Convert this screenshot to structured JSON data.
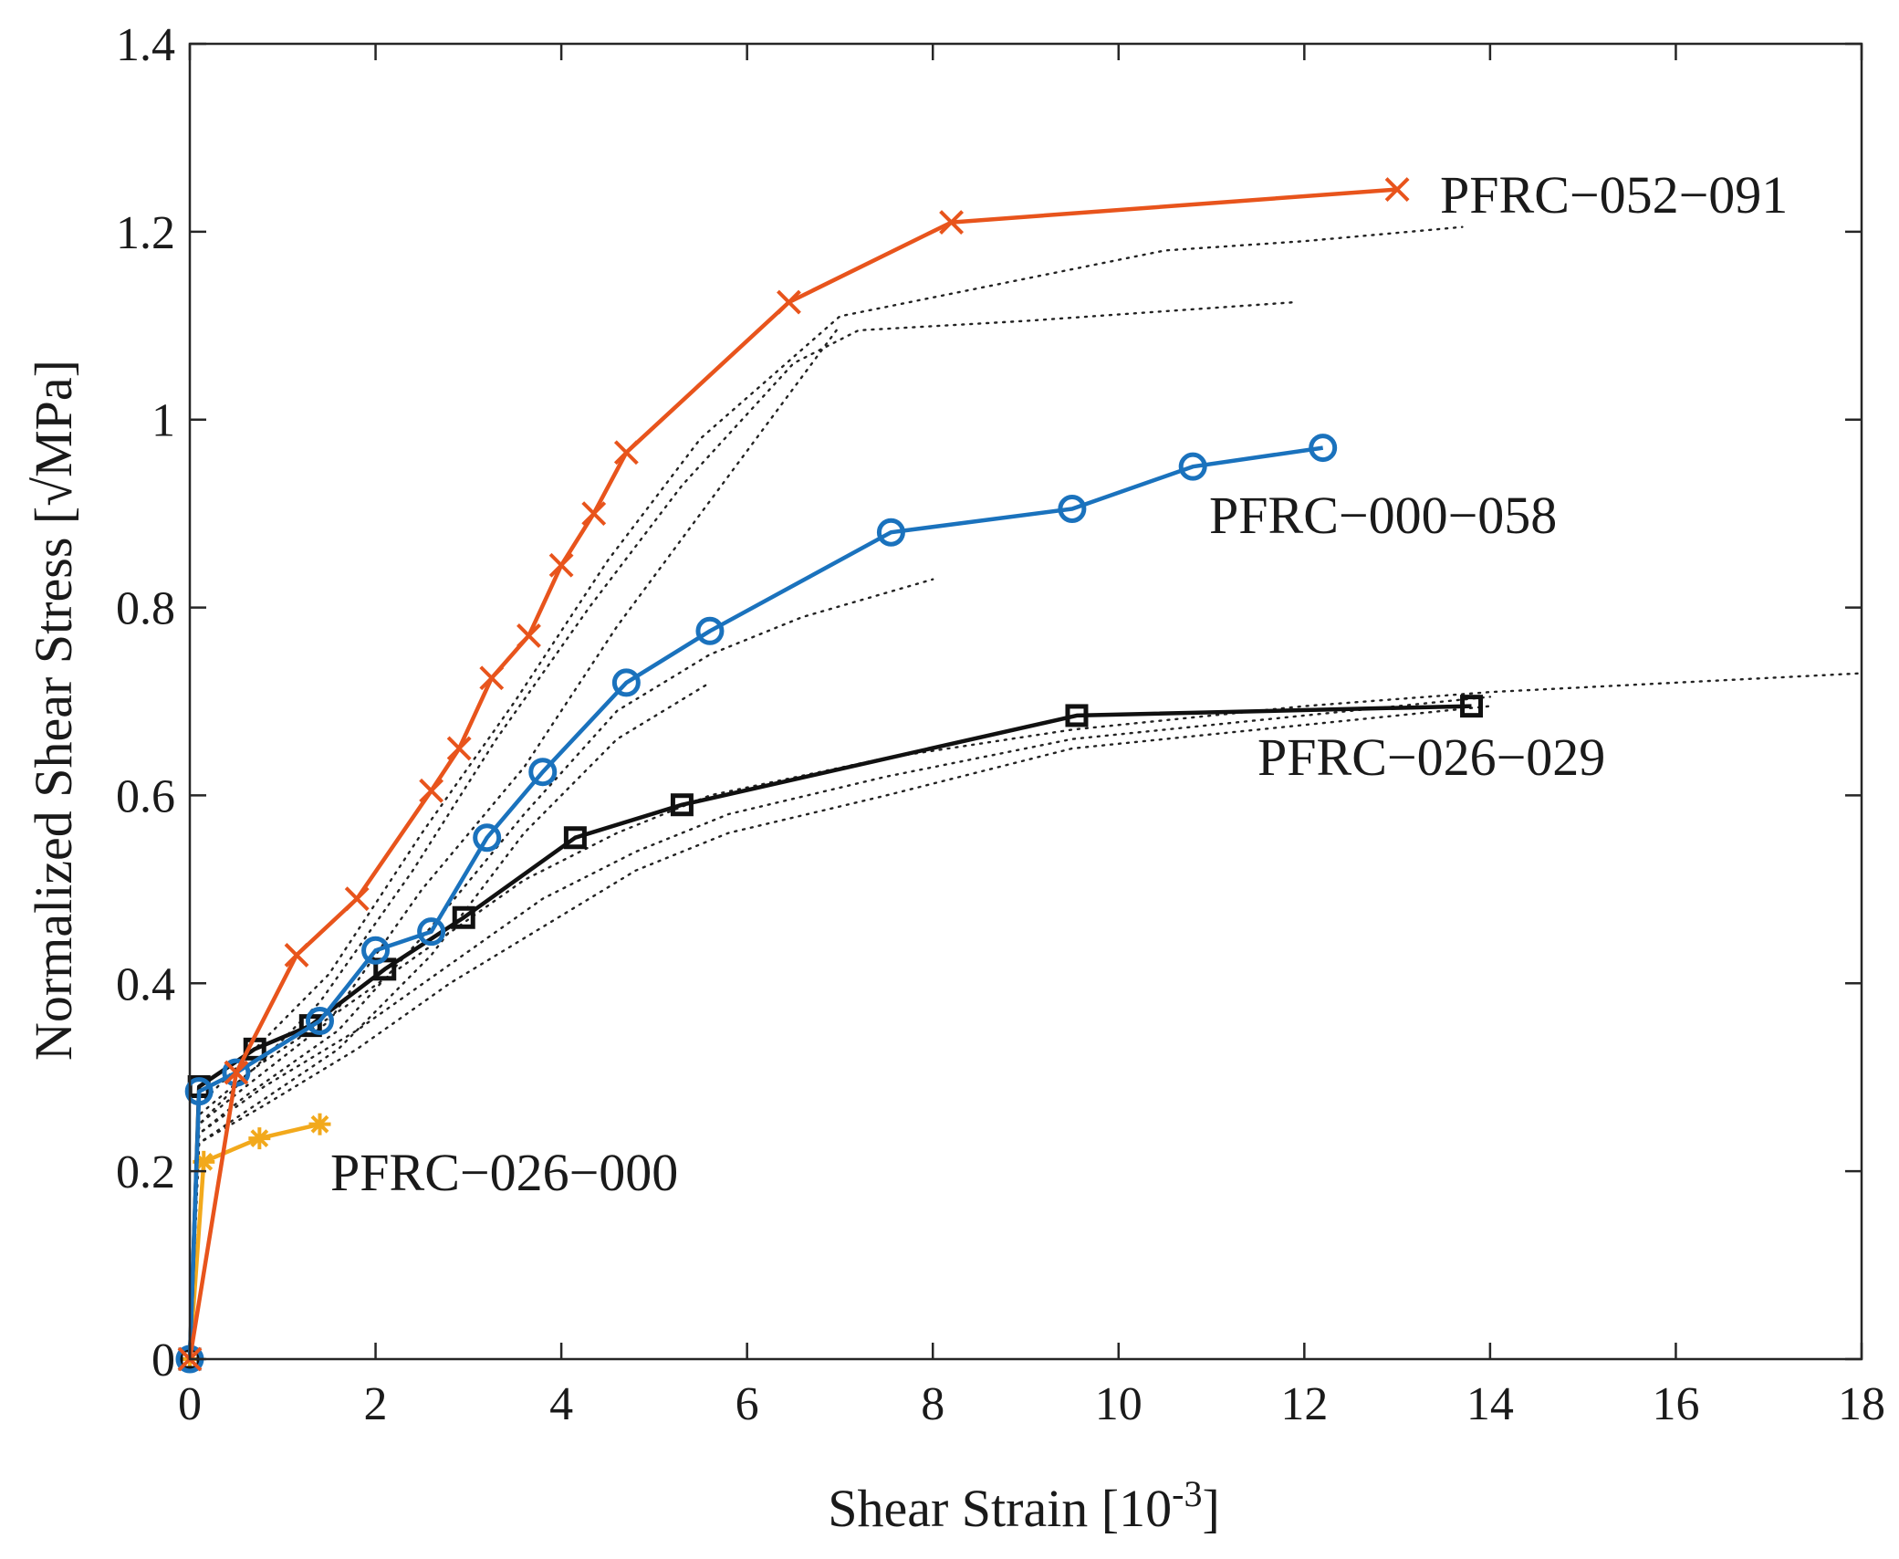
{
  "chart_data": {
    "type": "line",
    "xlabel": "Shear Strain [10",
    "xlabel_exponent": "-3",
    "xlabel_suffix": "]",
    "ylabel": "Normalized Shear Stress [√MPa]",
    "xlim": [
      0,
      18
    ],
    "ylim": [
      0,
      1.4
    ],
    "x_ticks": [
      0,
      2,
      4,
      6,
      8,
      10,
      12,
      14,
      16,
      18
    ],
    "x_tick_labels": [
      "0",
      "2",
      "4",
      "6",
      "8",
      "10",
      "12",
      "14",
      "16",
      "18"
    ],
    "y_ticks": [
      0,
      0.2,
      0.4,
      0.6,
      0.8,
      1.0,
      1.2,
      1.4
    ],
    "y_tick_labels": [
      "0",
      "0.2",
      "0.4",
      "0.6",
      "0.8",
      "1",
      "1.2",
      "1.4"
    ],
    "grid": false,
    "series": [
      {
        "name": "PFRC−052−091",
        "color": "#e8541c",
        "marker": "x",
        "x": [
          0,
          0.5,
          1.15,
          1.8,
          2.6,
          2.9,
          3.25,
          3.65,
          4.0,
          4.35,
          4.7,
          6.45,
          8.2,
          13.0
        ],
        "y": [
          0,
          0.305,
          0.43,
          0.49,
          0.605,
          0.65,
          0.725,
          0.77,
          0.845,
          0.9,
          0.965,
          1.125,
          1.21,
          1.245
        ]
      },
      {
        "name": "PFRC−000−058",
        "color": "#1a72bd",
        "marker": "circle",
        "x": [
          0,
          0.1,
          0.5,
          1.4,
          2.0,
          2.6,
          3.2,
          3.8,
          4.7,
          5.6,
          7.55,
          9.5,
          10.8,
          12.2
        ],
        "y": [
          0,
          0.285,
          0.305,
          0.36,
          0.435,
          0.455,
          0.555,
          0.625,
          0.72,
          0.775,
          0.88,
          0.905,
          0.95,
          0.97
        ]
      },
      {
        "name": "PFRC−026−029",
        "color": "#111111",
        "marker": "square",
        "x": [
          0,
          0.1,
          0.7,
          1.3,
          2.1,
          2.95,
          4.15,
          5.3,
          9.55,
          13.8
        ],
        "y": [
          0,
          0.29,
          0.33,
          0.355,
          0.415,
          0.47,
          0.555,
          0.59,
          0.685,
          0.695
        ]
      },
      {
        "name": "PFRC−026−000",
        "color": "#f2a91c",
        "marker": "asterisk",
        "x": [
          0,
          0.15,
          0.75,
          1.4
        ],
        "y": [
          0,
          0.21,
          0.235,
          0.25
        ]
      }
    ],
    "reference_curves": [
      {
        "x": [
          0,
          0.1,
          0.6,
          1.5,
          2.5,
          3.5,
          4.5,
          5.5,
          7.0,
          8.5,
          10.5,
          12.0,
          13.7
        ],
        "y": [
          0,
          0.27,
          0.32,
          0.41,
          0.56,
          0.7,
          0.85,
          0.98,
          1.11,
          1.14,
          1.18,
          1.19,
          1.205
        ]
      },
      {
        "x": [
          0,
          0.1,
          0.6,
          1.4,
          2.4,
          3.3,
          4.3,
          5.3,
          6.5,
          7.2,
          9.0,
          11.9
        ],
        "y": [
          0,
          0.25,
          0.3,
          0.38,
          0.52,
          0.66,
          0.8,
          0.93,
          1.06,
          1.095,
          1.105,
          1.125
        ]
      },
      {
        "x": [
          0,
          0.1,
          0.6,
          1.5,
          2.5,
          3.6,
          4.6,
          5.5,
          6.4,
          7.0
        ],
        "y": [
          0,
          0.25,
          0.29,
          0.36,
          0.5,
          0.63,
          0.78,
          0.9,
          1.02,
          1.1
        ]
      },
      {
        "x": [
          0,
          0.1,
          0.6,
          1.6,
          2.6,
          3.6,
          4.6,
          5.6,
          6.6,
          8.0
        ],
        "y": [
          0,
          0.24,
          0.28,
          0.35,
          0.46,
          0.58,
          0.69,
          0.75,
          0.79,
          0.83
        ]
      },
      {
        "x": [
          0,
          0.1,
          0.7,
          1.6,
          2.6,
          3.6,
          4.6,
          5.6
        ],
        "y": [
          0,
          0.23,
          0.27,
          0.33,
          0.43,
          0.56,
          0.66,
          0.72
        ]
      },
      {
        "x": [
          0,
          0.1,
          0.7,
          1.6,
          2.6,
          3.6,
          4.6,
          5.6,
          7.5,
          9.5,
          12.0,
          14.0,
          16.0,
          18.0
        ],
        "y": [
          0,
          0.26,
          0.31,
          0.37,
          0.44,
          0.51,
          0.56,
          0.6,
          0.64,
          0.67,
          0.695,
          0.71,
          0.72,
          0.73
        ]
      },
      {
        "x": [
          0,
          0.1,
          0.8,
          1.8,
          2.8,
          3.8,
          4.8,
          5.8,
          7.5,
          9.5,
          12.0,
          14.0
        ],
        "y": [
          0,
          0.24,
          0.29,
          0.35,
          0.42,
          0.49,
          0.54,
          0.58,
          0.62,
          0.66,
          0.685,
          0.705
        ]
      },
      {
        "x": [
          0,
          0.1,
          0.8,
          1.8,
          2.8,
          3.8,
          4.8,
          5.8,
          7.5,
          9.5,
          12.0,
          14.0
        ],
        "y": [
          0,
          0.23,
          0.27,
          0.33,
          0.4,
          0.46,
          0.52,
          0.56,
          0.6,
          0.65,
          0.675,
          0.695
        ]
      }
    ]
  }
}
